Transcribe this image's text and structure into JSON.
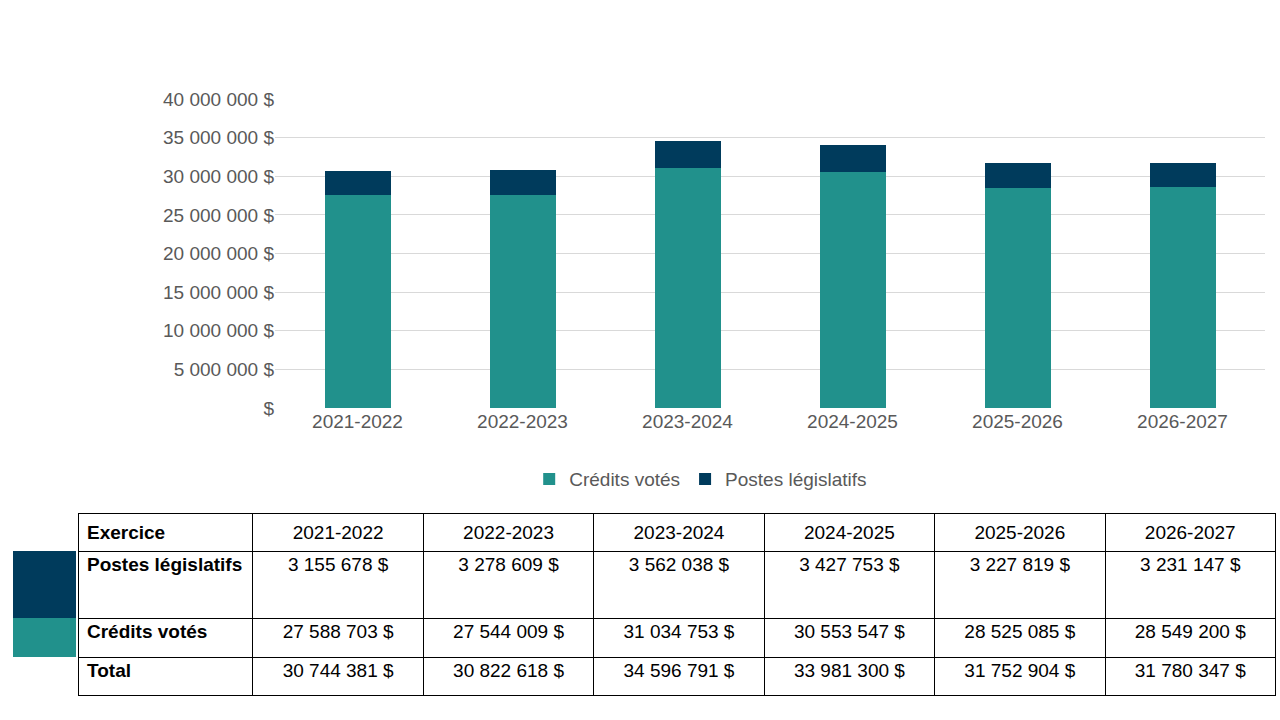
{
  "chart_data": {
    "type": "bar",
    "stacked": true,
    "grid": true,
    "legend": "bottom",
    "categories": [
      "2021-2022",
      "2022-2023",
      "2023-2024",
      "2024-2025",
      "2025-2026",
      "2026-2027"
    ],
    "series": [
      {
        "name": "Crédits votés",
        "color": "#21918c",
        "values": [
          27588703,
          27544009,
          31034753,
          30553547,
          28525085,
          28549200
        ]
      },
      {
        "name": "Postes législatifs",
        "color": "#003b5c",
        "values": [
          3155678,
          3278609,
          3562038,
          3427753,
          3227819,
          3231147
        ]
      }
    ],
    "ylim": [
      0,
      40000000
    ],
    "yticks": [
      {
        "value": 0,
        "label": "$"
      },
      {
        "value": 5000000,
        "label": "5 000 000 $"
      },
      {
        "value": 10000000,
        "label": "10 000 000 $"
      },
      {
        "value": 15000000,
        "label": "15 000 000 $"
      },
      {
        "value": 20000000,
        "label": "20 000 000 $"
      },
      {
        "value": 25000000,
        "label": "25 000 000 $"
      },
      {
        "value": 30000000,
        "label": "30 000 000 $"
      },
      {
        "value": 35000000,
        "label": "35 000 000 $"
      },
      {
        "value": 40000000,
        "label": "40 000 000 $"
      }
    ]
  },
  "table": {
    "header": [
      "Exercice",
      "2021-2022",
      "2022-2023",
      "2023-2024",
      "2024-2025",
      "2025-2026",
      "2026-2027"
    ],
    "rows": [
      [
        "Postes législatifs",
        "3 155 678 $",
        "3 278 609 $",
        "3 562 038 $",
        "3 427 753 $",
        "3 227 819 $",
        "3 231 147 $"
      ],
      [
        "Crédits votés",
        "27 588 703 $",
        "27 544 009 $",
        "31 034 753 $",
        "30 553 547 $",
        "28 525 085 $",
        "28 549 200 $"
      ],
      [
        "Total",
        "30 744 381 $",
        "30 822 618 $",
        "34 596 791 $",
        "33 981 300 $",
        "31 752 904 $",
        "31 780 347 $"
      ]
    ]
  }
}
